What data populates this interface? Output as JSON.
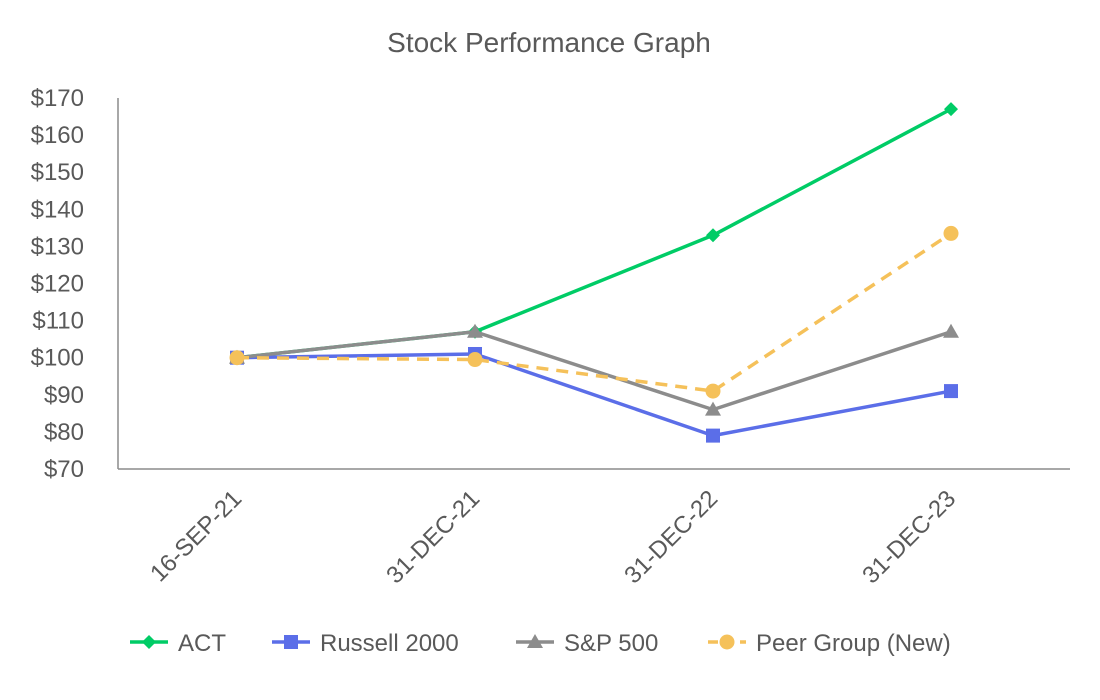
{
  "chart_data": {
    "type": "line",
    "title": "Stock Performance Graph",
    "categories": [
      "16-SEP-21",
      "31-DEC-21",
      "31-DEC-22",
      "31-DEC-23"
    ],
    "ylim": [
      70,
      170
    ],
    "yticks": [
      70,
      80,
      90,
      100,
      110,
      120,
      130,
      140,
      150,
      160,
      170
    ],
    "y_tick_labels": [
      "$70",
      "$80",
      "$90",
      "$100",
      "$110",
      "$120",
      "$130",
      "$140",
      "$150",
      "$160",
      "$170"
    ],
    "xlabel": "",
    "ylabel": "",
    "grid": false,
    "legend_position": "bottom",
    "series": [
      {
        "name": "ACT",
        "values": [
          100,
          107,
          133,
          167
        ],
        "color": "#00CC66",
        "marker": "diamond",
        "dashed": false
      },
      {
        "name": "Russell 2000",
        "values": [
          100,
          101,
          79,
          91
        ],
        "color": "#5B6EE8",
        "marker": "square",
        "dashed": false
      },
      {
        "name": "S&P 500",
        "values": [
          100,
          107,
          86,
          107
        ],
        "color": "#8C8C8C",
        "marker": "triangle",
        "dashed": false
      },
      {
        "name": "Peer Group (New)",
        "values": [
          100,
          99.5,
          91,
          133.5
        ],
        "color": "#F5C15A",
        "marker": "circle",
        "dashed": true
      }
    ]
  }
}
